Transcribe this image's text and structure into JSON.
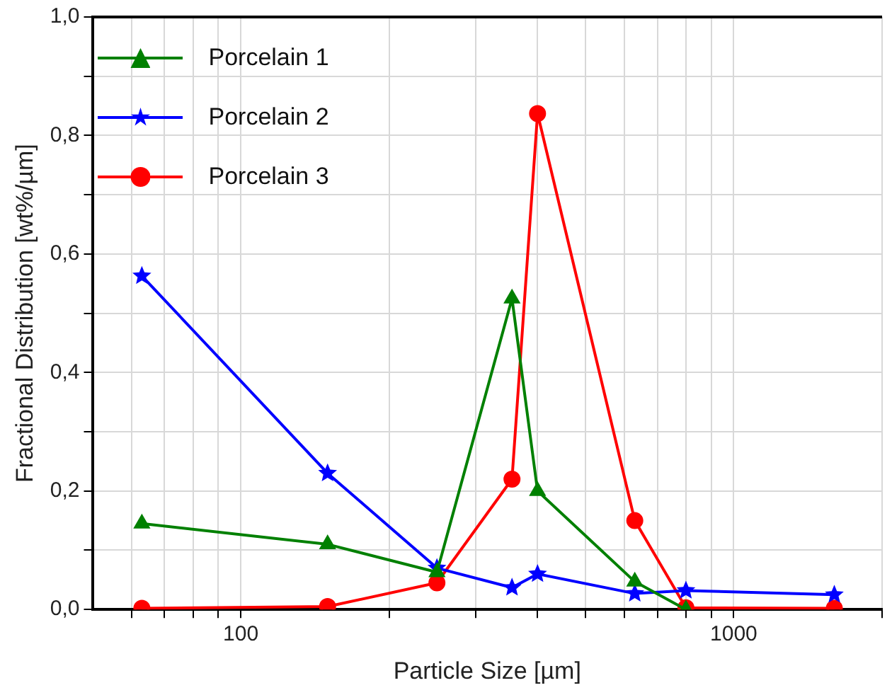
{
  "chart_data": {
    "type": "line",
    "xlabel": "Particle Size [µm]",
    "ylabel": "Fractional Distribution [wt%/µm]",
    "log": "x",
    "grid": true,
    "legend": "top left",
    "line_style": "solid",
    "xlim": [
      50,
      2000
    ],
    "ylim": [
      0,
      1
    ],
    "xticks": [
      {
        "value": 60,
        "label": null
      },
      {
        "value": 70,
        "label": null
      },
      {
        "value": 80,
        "label": null
      },
      {
        "value": 90,
        "label": null
      },
      100,
      {
        "value": 200,
        "label": null
      },
      {
        "value": 300,
        "label": null
      },
      {
        "value": 400,
        "label": null
      },
      {
        "value": 500,
        "label": null
      },
      {
        "value": 600,
        "label": null
      },
      {
        "value": 700,
        "label": null
      },
      {
        "value": 800,
        "label": null
      },
      {
        "value": 900,
        "label": null
      },
      1000,
      {
        "value": 2000,
        "label": null
      }
    ],
    "yticks": [
      {
        "value": 0,
        "label": "0,0"
      },
      {
        "value": 0.1,
        "label": null
      },
      {
        "value": 0.2,
        "label": "0,2"
      },
      {
        "value": 0.3,
        "label": null
      },
      {
        "value": 0.4,
        "label": "0,4"
      },
      {
        "value": 0.5,
        "label": null
      },
      {
        "value": 0.6,
        "label": "0,6"
      },
      {
        "value": 0.7,
        "label": null
      },
      {
        "value": 0.8,
        "label": "0,8"
      },
      {
        "value": 0.9,
        "label": null
      },
      {
        "value": 1,
        "label": "1,0"
      }
    ],
    "series": [
      {
        "name": "Porcelain 1",
        "color": "#008000",
        "marker": "triangle",
        "x": [
          63,
          150,
          250,
          355,
          400,
          630,
          800
        ],
        "values": [
          0.145,
          0.11,
          0.063,
          0.525,
          0.2,
          0.047,
          0.0
        ]
      },
      {
        "name": "Porcelain 2",
        "color": "#0000ff",
        "marker": "star",
        "x": [
          63,
          150,
          250,
          355,
          400,
          630,
          800,
          1600
        ],
        "values": [
          0.563,
          0.23,
          0.07,
          0.037,
          0.06,
          0.027,
          0.032,
          0.025
        ]
      },
      {
        "name": "Porcelain 3",
        "color": "#ff0000",
        "marker": "circle",
        "x": [
          63,
          150,
          250,
          355,
          400,
          630,
          800,
          1600
        ],
        "values": [
          0.002,
          0.005,
          0.045,
          0.22,
          0.837,
          0.15,
          0.003,
          0.002
        ]
      }
    ]
  }
}
